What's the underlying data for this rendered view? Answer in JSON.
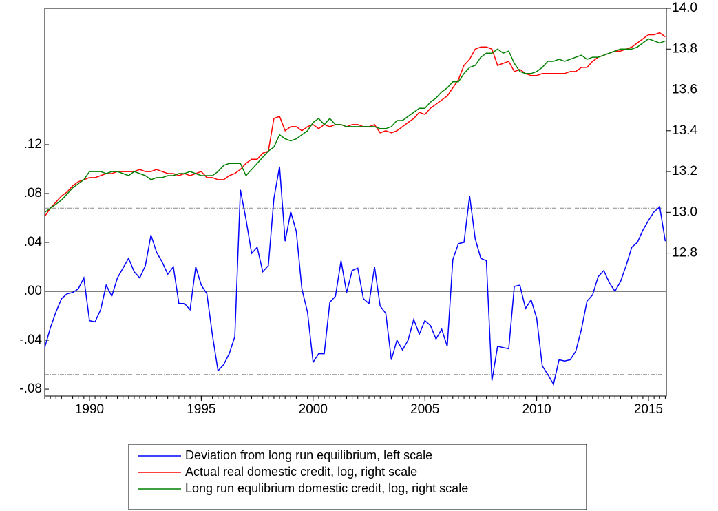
{
  "chart_data": {
    "type": "line",
    "x": [
      1988,
      1988.25,
      1988.5,
      1988.75,
      1989,
      1989.25,
      1989.5,
      1989.75,
      1990,
      1990.25,
      1990.5,
      1990.75,
      1991,
      1991.25,
      1991.5,
      1991.75,
      1992,
      1992.25,
      1992.5,
      1992.75,
      1993,
      1993.25,
      1993.5,
      1993.75,
      1994,
      1994.25,
      1994.5,
      1994.75,
      1995,
      1995.25,
      1995.5,
      1995.75,
      1996,
      1996.25,
      1996.5,
      1996.75,
      1997,
      1997.25,
      1997.5,
      1997.75,
      1998,
      1998.25,
      1998.5,
      1998.75,
      1999,
      1999.25,
      1999.5,
      1999.75,
      2000,
      2000.25,
      2000.5,
      2000.75,
      2001,
      2001.25,
      2001.5,
      2001.75,
      2002,
      2002.25,
      2002.5,
      2002.75,
      2003,
      2003.25,
      2003.5,
      2003.75,
      2004,
      2004.25,
      2004.5,
      2004.75,
      2005,
      2005.25,
      2005.5,
      2005.75,
      2006,
      2006.25,
      2006.5,
      2006.75,
      2007,
      2007.25,
      2007.5,
      2007.75,
      2008,
      2008.25,
      2008.5,
      2008.75,
      2009,
      2009.25,
      2009.5,
      2009.75,
      2010,
      2010.25,
      2010.5,
      2010.75,
      2011,
      2011.25,
      2011.5,
      2011.75,
      2012,
      2012.25,
      2012.5,
      2012.75,
      2013,
      2013.25,
      2013.5,
      2013.75,
      2014,
      2014.25,
      2014.5,
      2014.75,
      2015,
      2015.25,
      2015.5,
      2015.75
    ],
    "series": [
      {
        "name": "Deviation from long run equilibrium, left scale",
        "color": "#0000ff",
        "axis": "y",
        "values": [
          -0.046,
          -0.03,
          -0.017,
          -0.006,
          -0.002,
          -0.001,
          0.002,
          0.011,
          -0.024,
          -0.025,
          -0.015,
          0.005,
          -0.004,
          0.011,
          0.019,
          0.027,
          0.016,
          0.011,
          0.021,
          0.046,
          0.032,
          0.024,
          0.014,
          0.02,
          -0.01,
          -0.01,
          -0.015,
          0.02,
          0.005,
          -0.002,
          -0.036,
          -0.065,
          -0.06,
          -0.051,
          -0.037,
          0.083,
          0.059,
          0.031,
          0.036,
          0.016,
          0.021,
          0.076,
          0.102,
          0.041,
          0.065,
          0.049,
          0.002,
          -0.017,
          -0.058,
          -0.051,
          -0.051,
          -0.009,
          -0.004,
          0.025,
          -0.001,
          0.017,
          0.019,
          -0.006,
          -0.01,
          0.02,
          -0.012,
          -0.018,
          -0.056,
          -0.04,
          -0.048,
          -0.04,
          -0.023,
          -0.035,
          -0.024,
          -0.028,
          -0.039,
          -0.031,
          -0.045,
          0.026,
          0.039,
          0.04,
          0.078,
          0.043,
          0.027,
          0.025,
          -0.073,
          -0.045,
          -0.046,
          -0.047,
          0.004,
          0.005,
          -0.014,
          -0.007,
          -0.022,
          -0.061,
          -0.068,
          -0.076,
          -0.056,
          -0.057,
          -0.056,
          -0.049,
          -0.031,
          -0.008,
          -0.003,
          0.012,
          0.017,
          0.007,
          0,
          0.008,
          0.021,
          0.036,
          0.04,
          0.05,
          0.058,
          0.065,
          0.069,
          0.041
        ]
      },
      {
        "name": "Actual real domestic credit, log, right scale",
        "color": "#ff0000",
        "axis": "y2",
        "values": [
          12.98,
          13.02,
          13.05,
          13.08,
          13.1,
          13.13,
          13.15,
          13.16,
          13.17,
          13.17,
          13.18,
          13.19,
          13.19,
          13.2,
          13.2,
          13.2,
          13.2,
          13.21,
          13.2,
          13.2,
          13.21,
          13.2,
          13.19,
          13.19,
          13.18,
          13.19,
          13.18,
          13.19,
          13.2,
          13.17,
          13.17,
          13.16,
          13.16,
          13.18,
          13.19,
          13.21,
          13.24,
          13.26,
          13.26,
          13.29,
          13.3,
          13.46,
          13.47,
          13.4,
          13.42,
          13.42,
          13.4,
          13.42,
          13.43,
          13.41,
          13.43,
          13.42,
          13.43,
          13.43,
          13.42,
          13.43,
          13.43,
          13.42,
          13.42,
          13.43,
          13.39,
          13.4,
          13.39,
          13.4,
          13.42,
          13.44,
          13.46,
          13.49,
          13.48,
          13.51,
          13.53,
          13.55,
          13.57,
          13.61,
          13.65,
          13.72,
          13.75,
          13.8,
          13.81,
          13.81,
          13.8,
          13.72,
          13.73,
          13.74,
          13.69,
          13.7,
          13.68,
          13.67,
          13.67,
          13.68,
          13.68,
          13.68,
          13.68,
          13.68,
          13.69,
          13.69,
          13.71,
          13.71,
          13.74,
          13.76,
          13.77,
          13.78,
          13.79,
          13.79,
          13.8,
          13.81,
          13.83,
          13.85,
          13.87,
          13.87,
          13.88,
          13.86
        ]
      },
      {
        "name": "Long run equlibrium domestic credit, log, right scale",
        "color": "#008000",
        "axis": "y2",
        "values": [
          13,
          13.02,
          13.04,
          13.06,
          13.09,
          13.12,
          13.14,
          13.16,
          13.2,
          13.2,
          13.2,
          13.19,
          13.2,
          13.2,
          13.19,
          13.18,
          13.2,
          13.19,
          13.18,
          13.16,
          13.17,
          13.17,
          13.18,
          13.18,
          13.19,
          13.19,
          13.2,
          13.19,
          13.18,
          13.18,
          13.18,
          13.2,
          13.23,
          13.24,
          13.24,
          13.24,
          13.18,
          13.21,
          13.24,
          13.27,
          13.3,
          13.32,
          13.38,
          13.36,
          13.35,
          13.36,
          13.38,
          13.4,
          13.44,
          13.46,
          13.43,
          13.46,
          13.43,
          13.43,
          13.42,
          13.42,
          13.42,
          13.42,
          13.42,
          13.42,
          13.41,
          13.41,
          13.42,
          13.45,
          13.45,
          13.47,
          13.49,
          13.51,
          13.51,
          13.54,
          13.56,
          13.59,
          13.61,
          13.64,
          13.64,
          13.68,
          13.71,
          13.72,
          13.76,
          13.78,
          13.78,
          13.8,
          13.78,
          13.79,
          13.73,
          13.69,
          13.68,
          13.68,
          13.69,
          13.71,
          13.74,
          13.74,
          13.75,
          13.74,
          13.75,
          13.76,
          13.77,
          13.75,
          13.76,
          13.76,
          13.77,
          13.78,
          13.79,
          13.8,
          13.8,
          13.8,
          13.81,
          13.83,
          13.85,
          13.84,
          13.83,
          13.84
        ]
      }
    ],
    "xlim": [
      1988,
      2015.8
    ],
    "xticks": [
      1990,
      1995,
      2000,
      2005,
      2010,
      2015
    ],
    "ylim": [
      -0.0856,
      0.2315
    ],
    "yticks": [
      {
        "value": -0.08,
        "label": "-.08"
      },
      {
        "value": -0.04,
        "label": "-.04"
      },
      {
        "value": 0,
        "label": ".00"
      },
      {
        "value": 0.04,
        "label": ".04"
      },
      {
        "value": 0.08,
        "label": ".08"
      },
      {
        "value": 0.12,
        "label": ".12"
      }
    ],
    "y2lim": [
      12.1,
      14.0
    ],
    "y2ticks": [
      12.8,
      {
        "value": 13.0,
        "label": "13.0"
      },
      13.2,
      13.4,
      13.6,
      13.8,
      {
        "value": 14.0,
        "label": "14.0"
      }
    ],
    "reference_lines": [
      {
        "value": 0,
        "style": "solid"
      },
      {
        "value": 0.068,
        "style": "dashed"
      },
      {
        "value": -0.068,
        "style": "dashed"
      }
    ],
    "legend": "bottom"
  }
}
